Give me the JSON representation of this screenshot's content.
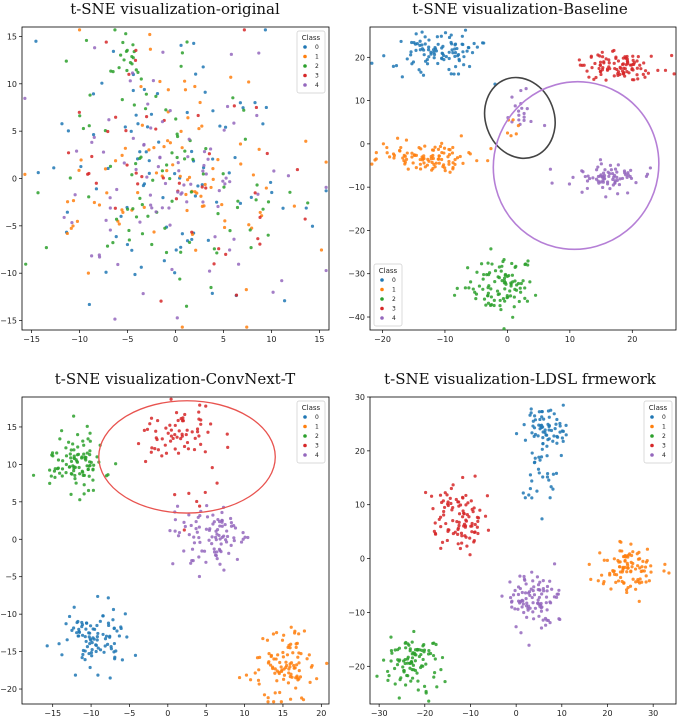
{
  "colors": {
    "0": "#1f77b4",
    "1": "#ff7f0e",
    "2": "#2ca02c",
    "3": "#d62728",
    "4": "#9467bd",
    "axis": "#000000",
    "marker_ellipse_baseline_dark": "#444444",
    "marker_ellipse_baseline_purple": "#b57fd6",
    "marker_ellipse_convnext": "#e8534f"
  },
  "chart_data": [
    {
      "type": "scatter",
      "title": "t-SNE visualization-original",
      "xlim": [
        -16,
        16
      ],
      "ylim": [
        -16,
        16
      ],
      "xticks": [
        -15,
        -10,
        -5,
        0,
        5,
        10,
        15
      ],
      "yticks": [
        -15,
        -10,
        -5,
        0,
        5,
        10,
        15
      ],
      "legend": {
        "title": "Class",
        "labels": [
          "0",
          "1",
          "2",
          "3",
          "4"
        ],
        "placement": "top-right"
      },
      "clusters": [
        {
          "class": 0,
          "cx": 0,
          "cy": 0,
          "sx": 6.5,
          "sy": 6.5,
          "n": 90,
          "seed": 11
        },
        {
          "class": 1,
          "cx": 0,
          "cy": 0,
          "sx": 6.5,
          "sy": 6.5,
          "n": 90,
          "seed": 12
        },
        {
          "class": 2,
          "cx": -1,
          "cy": 1,
          "sx": 6.5,
          "sy": 6.5,
          "n": 90,
          "seed": 13
        },
        {
          "class": 2,
          "cx": -5,
          "cy": 13,
          "sx": 1.2,
          "sy": 1.0,
          "n": 14,
          "seed": 14
        },
        {
          "class": 3,
          "cx": 0,
          "cy": 0,
          "sx": 6.5,
          "sy": 6.5,
          "n": 45,
          "seed": 15
        },
        {
          "class": 4,
          "cx": 0,
          "cy": 0,
          "sx": 6.5,
          "sy": 6.5,
          "n": 90,
          "seed": 16
        }
      ],
      "ellipses": []
    },
    {
      "type": "scatter",
      "title": "t-SNE visualization-Baseline",
      "xlim": [
        -22,
        27
      ],
      "ylim": [
        -43,
        27
      ],
      "xticks": [
        -20,
        -10,
        0,
        10,
        20
      ],
      "yticks": [
        -40,
        -30,
        -20,
        -10,
        0,
        10,
        20
      ],
      "legend": {
        "title": "Class",
        "labels": [
          "0",
          "1",
          "2",
          "3",
          "4"
        ],
        "placement": "bottom-left"
      },
      "clusters": [
        {
          "class": 0,
          "cx": -11,
          "cy": 21,
          "sx": 3.8,
          "sy": 2.4,
          "n": 100,
          "seed": 21
        },
        {
          "class": 1,
          "cx": -13,
          "cy": -3,
          "sx": 4.0,
          "sy": 2.0,
          "n": 100,
          "seed": 22
        },
        {
          "class": 2,
          "cx": -1,
          "cy": -33,
          "sx": 2.6,
          "sy": 3.5,
          "n": 100,
          "seed": 23
        },
        {
          "class": 3,
          "cx": 18,
          "cy": 18,
          "sx": 3.5,
          "sy": 2.0,
          "n": 100,
          "seed": 24
        },
        {
          "class": 4,
          "cx": 16,
          "cy": -8,
          "sx": 2.8,
          "sy": 2.0,
          "n": 75,
          "seed": 25
        },
        {
          "class": 4,
          "cx": 2,
          "cy": 7,
          "sx": 1.4,
          "sy": 2.0,
          "n": 18,
          "seed": 26
        },
        {
          "class": 1,
          "cx": 1,
          "cy": 3,
          "sx": 1.2,
          "sy": 1.4,
          "n": 6,
          "seed": 27
        }
      ],
      "ellipses": [
        {
          "cx": 2,
          "cy": 6,
          "rx": 5.5,
          "ry": 9.5,
          "rot": -20,
          "color": "marker_ellipse_baseline_dark",
          "width": 1.6
        },
        {
          "cx": 11,
          "cy": -5,
          "rx": 13.5,
          "ry": 19,
          "rot": -60,
          "color": "marker_ellipse_baseline_purple",
          "width": 1.6
        }
      ]
    },
    {
      "type": "scatter",
      "title": "t-SNE visualization-ConvNext-T",
      "xlim": [
        -19,
        21
      ],
      "ylim": [
        -22,
        19
      ],
      "xticks": [
        -15,
        -10,
        -5,
        0,
        5,
        10,
        15,
        20
      ],
      "yticks": [
        -20,
        -15,
        -10,
        -5,
        0,
        5,
        10,
        15
      ],
      "legend": {
        "title": "Class",
        "labels": [
          "0",
          "1",
          "2",
          "3",
          "4"
        ],
        "placement": "top-right"
      },
      "clusters": [
        {
          "class": 0,
          "cx": -10,
          "cy": -13,
          "sx": 2.2,
          "sy": 2.0,
          "n": 95,
          "seed": 31
        },
        {
          "class": 1,
          "cx": 15,
          "cy": -17,
          "sx": 2.0,
          "sy": 2.2,
          "n": 100,
          "seed": 32
        },
        {
          "class": 2,
          "cx": -12,
          "cy": 10,
          "sx": 2.0,
          "sy": 2.2,
          "n": 100,
          "seed": 33
        },
        {
          "class": 3,
          "cx": 1,
          "cy": 14,
          "sx": 2.8,
          "sy": 2.0,
          "n": 65,
          "seed": 34
        },
        {
          "class": 3,
          "cx": 3,
          "cy": 7,
          "sx": 1.4,
          "sy": 2.2,
          "n": 8,
          "seed": 35
        },
        {
          "class": 4,
          "cx": 6,
          "cy": 0,
          "sx": 2.4,
          "sy": 2.0,
          "n": 95,
          "seed": 36
        }
      ],
      "ellipses": [
        {
          "cx": 2.5,
          "cy": 11,
          "rx": 11.5,
          "ry": 7.5,
          "rot": 0,
          "color": "marker_ellipse_convnext",
          "width": 1.3
        }
      ]
    },
    {
      "type": "scatter",
      "title": "t-SNE visualization-LDSL frmework",
      "xlim": [
        -32,
        35
      ],
      "ylim": [
        -27,
        30
      ],
      "xticks": [
        -30,
        -20,
        -10,
        0,
        10,
        20,
        30
      ],
      "yticks": [
        -20,
        -10,
        0,
        10,
        20,
        30
      ],
      "legend": {
        "title": "Class",
        "labels": [
          "0",
          "1",
          "2",
          "3",
          "4"
        ],
        "placement": "top-right"
      },
      "clusters": [
        {
          "class": 0,
          "cx": 6,
          "cy": 24,
          "sx": 2.4,
          "sy": 2.0,
          "n": 65,
          "seed": 41
        },
        {
          "class": 0,
          "cx": 5,
          "cy": 15,
          "sx": 1.8,
          "sy": 2.4,
          "n": 30,
          "seed": 42
        },
        {
          "class": 1,
          "cx": 25,
          "cy": -2,
          "sx": 3.8,
          "sy": 2.0,
          "n": 100,
          "seed": 43
        },
        {
          "class": 2,
          "cx": -23,
          "cy": -19,
          "sx": 3.0,
          "sy": 2.6,
          "n": 100,
          "seed": 44
        },
        {
          "class": 3,
          "cx": -13,
          "cy": 8,
          "sx": 3.0,
          "sy": 3.0,
          "n": 100,
          "seed": 45
        },
        {
          "class": 4,
          "cx": 4,
          "cy": -8,
          "sx": 2.8,
          "sy": 3.0,
          "n": 100,
          "seed": 46
        }
      ],
      "ellipses": []
    }
  ]
}
